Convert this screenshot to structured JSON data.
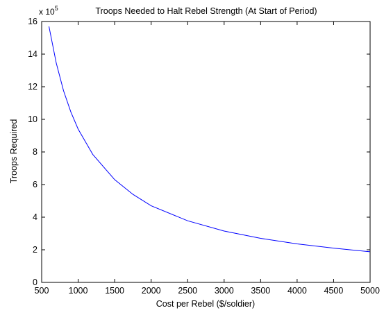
{
  "chart_data": {
    "type": "line",
    "title": "Troops Needed to Halt Rebel Strength (At Start of Period)",
    "xlabel": "Cost per Rebel ($/soldier)",
    "ylabel": "Troops Required",
    "y_exponent_label": {
      "base": "x 10",
      "exp": "5"
    },
    "xlim": [
      500,
      5000
    ],
    "ylim": [
      0,
      16
    ],
    "x_ticks": [
      500,
      1000,
      1500,
      2000,
      2500,
      3000,
      3500,
      4000,
      4500,
      5000
    ],
    "y_ticks": [
      0,
      2,
      4,
      6,
      8,
      10,
      12,
      14,
      16
    ],
    "grid": false,
    "line_color": "#0000ff",
    "series": [
      {
        "x": [
          600,
          700,
          800,
          900,
          1000,
          1200,
          1500,
          1750,
          2000,
          2500,
          3000,
          3500,
          4000,
          4500,
          5000
        ],
        "y": [
          15.7,
          13.45,
          11.75,
          10.45,
          9.4,
          7.85,
          6.3,
          5.4,
          4.7,
          3.78,
          3.15,
          2.7,
          2.36,
          2.1,
          1.88
        ]
      }
    ]
  }
}
